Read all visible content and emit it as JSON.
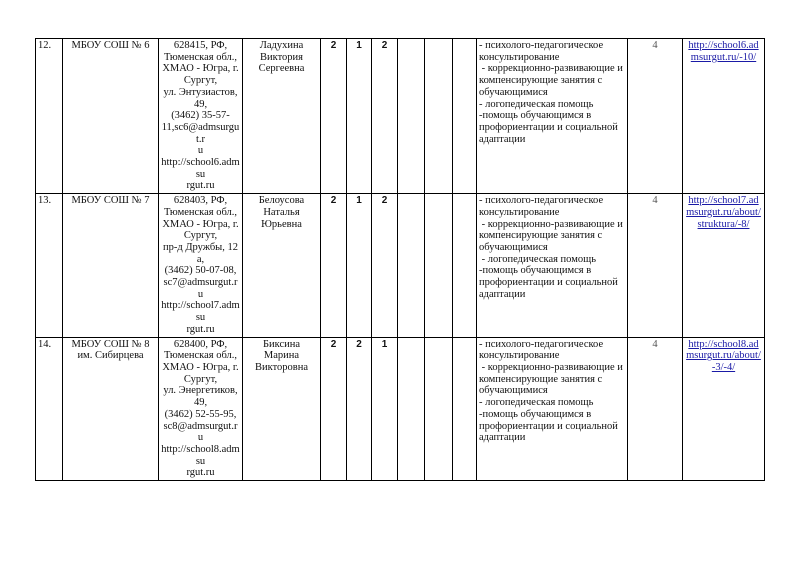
{
  "rows": [
    {
      "num": "12.",
      "school": "МБОУ СОШ № 6",
      "address": [
        "628415, РФ,",
        "Тюменская обл.,",
        "ХМАО - Югра, г.",
        "Сургут,",
        "ул. Энтузиастов, 49,",
        "(3462) 35-57-",
        "11,sc6@admsurgut.r",
        "u",
        "http://school6.admsu",
        "rgut.ru"
      ],
      "person": "Ладухина Виктория Сергеевна",
      "v1": "2",
      "v2": "1",
      "v3": "2",
      "services": [
        "- психолого-педагогическое консультирование",
        " - коррекционно-развивающие и компенсирующие занятия с обучающимися",
        "- логопедическая помощь",
        "-помощь обучающимся в профориентации и социальной адаптации"
      ],
      "count": "4",
      "link": "http://school6.admsurgut.ru/-10/"
    },
    {
      "num": "13.",
      "school": "МБОУ СОШ № 7",
      "address": [
        "628403, РФ,",
        "Тюменская обл.,",
        "ХМАО - Югра, г.",
        "Сургут,",
        "пр-д Дружбы, 12а,",
        "(3462) 50-07-08,",
        "sc7@admsurgut.ru",
        "http://school7.admsu",
        "rgut.ru"
      ],
      "person": "Белоусова Наталья Юрьевна",
      "v1": "2",
      "v2": "1",
      "v3": "2",
      "services": [
        "- психолого-педагогическое консультирование",
        " - коррекционно-развивающие и компенсирующие занятия с обучающимися",
        " - логопедическая помощь",
        "-помощь обучающимся в профориентации и социальной адаптации"
      ],
      "count": "4",
      "link": "http://school7.admsurgut.ru/about/struktura/-8/"
    },
    {
      "num": "14.",
      "school": "МБОУ СОШ № 8 им. Сибирцева",
      "address": [
        "628400, РФ,",
        "Тюменская обл.,",
        "ХМАО - Югра, г.",
        "Сургут,",
        "ул. Энергетиков, 49,",
        "(3462) 52-55-95,",
        "sc8@admsurgut.ru",
        "http://school8.admsu",
        "rgut.ru"
      ],
      "person": "Биксина Марина Викторовна",
      "v1": "2",
      "v2": "2",
      "v3": "1",
      "services": [
        "- психолого-педагогическое консультирование",
        " - коррекционно-развивающие и компенсирующие занятия с обучающимися",
        "- логопедическая помощь",
        "-помощь обучающимся в профориентации и социальной адаптации"
      ],
      "count": "4",
      "link": "http://school8.admsurgut.ru/about/-3/-4/"
    }
  ]
}
